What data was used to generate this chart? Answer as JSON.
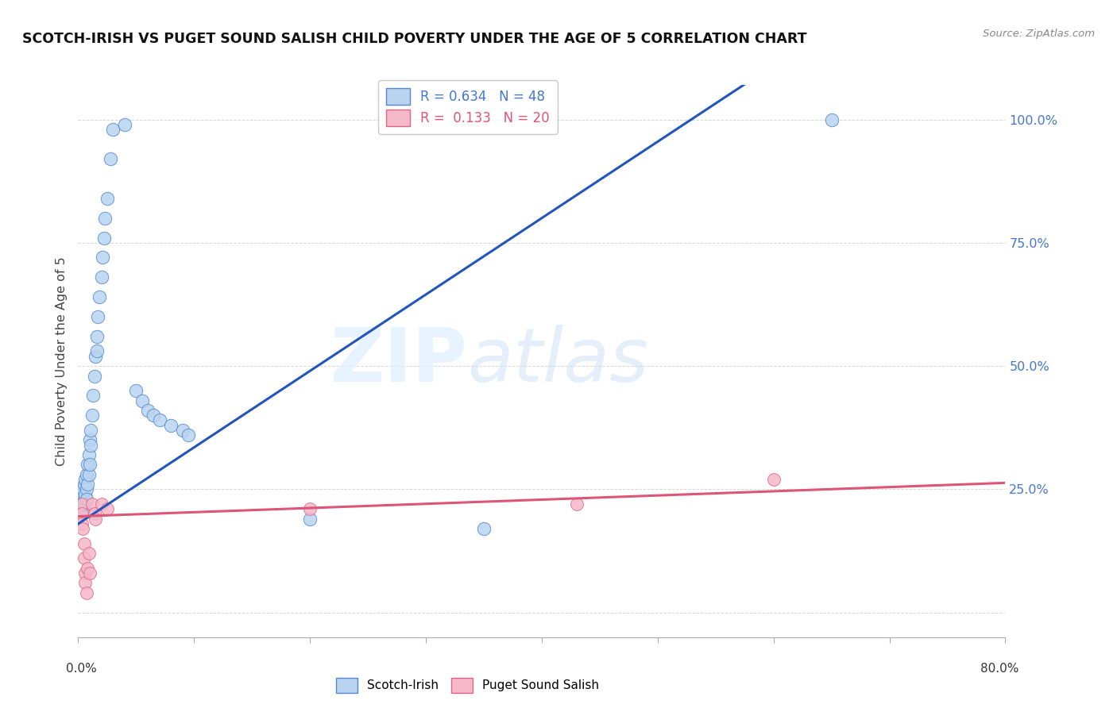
{
  "title": "SCOTCH-IRISH VS PUGET SOUND SALISH CHILD POVERTY UNDER THE AGE OF 5 CORRELATION CHART",
  "source": "Source: ZipAtlas.com",
  "ylabel": "Child Poverty Under the Age of 5",
  "xlim": [
    0.0,
    0.8
  ],
  "ylim": [
    -0.05,
    1.07
  ],
  "scotch_irish_color": "#b8d4f0",
  "scotch_irish_edge": "#5588cc",
  "puget_color": "#f5b8c8",
  "puget_edge": "#dd6688",
  "line1_color": "#2255bb",
  "line2_color": "#dd5577",
  "line1_slope": 1.55,
  "line1_intercept": 0.18,
  "line2_slope": 0.085,
  "line2_intercept": 0.195,
  "scotch_irish_points": [
    [
      0.003,
      0.24
    ],
    [
      0.003,
      0.22
    ],
    [
      0.004,
      0.25
    ],
    [
      0.004,
      0.22
    ],
    [
      0.005,
      0.26
    ],
    [
      0.005,
      0.23
    ],
    [
      0.005,
      0.21
    ],
    [
      0.006,
      0.27
    ],
    [
      0.006,
      0.24
    ],
    [
      0.006,
      0.22
    ],
    [
      0.007,
      0.28
    ],
    [
      0.007,
      0.25
    ],
    [
      0.007,
      0.23
    ],
    [
      0.008,
      0.3
    ],
    [
      0.008,
      0.26
    ],
    [
      0.009,
      0.32
    ],
    [
      0.009,
      0.28
    ],
    [
      0.01,
      0.35
    ],
    [
      0.01,
      0.3
    ],
    [
      0.011,
      0.37
    ],
    [
      0.011,
      0.34
    ],
    [
      0.012,
      0.4
    ],
    [
      0.013,
      0.44
    ],
    [
      0.014,
      0.48
    ],
    [
      0.015,
      0.52
    ],
    [
      0.016,
      0.56
    ],
    [
      0.016,
      0.53
    ],
    [
      0.017,
      0.6
    ],
    [
      0.018,
      0.64
    ],
    [
      0.02,
      0.68
    ],
    [
      0.021,
      0.72
    ],
    [
      0.022,
      0.76
    ],
    [
      0.023,
      0.8
    ],
    [
      0.025,
      0.84
    ],
    [
      0.028,
      0.92
    ],
    [
      0.03,
      0.98
    ],
    [
      0.04,
      0.99
    ],
    [
      0.05,
      0.45
    ],
    [
      0.055,
      0.43
    ],
    [
      0.06,
      0.41
    ],
    [
      0.065,
      0.4
    ],
    [
      0.07,
      0.39
    ],
    [
      0.08,
      0.38
    ],
    [
      0.09,
      0.37
    ],
    [
      0.095,
      0.36
    ],
    [
      0.2,
      0.19
    ],
    [
      0.35,
      0.17
    ],
    [
      0.65,
      1.0
    ]
  ],
  "puget_points": [
    [
      0.003,
      0.22
    ],
    [
      0.003,
      0.2
    ],
    [
      0.003,
      0.18
    ],
    [
      0.004,
      0.17
    ],
    [
      0.005,
      0.14
    ],
    [
      0.005,
      0.11
    ],
    [
      0.006,
      0.08
    ],
    [
      0.006,
      0.06
    ],
    [
      0.007,
      0.04
    ],
    [
      0.008,
      0.09
    ],
    [
      0.009,
      0.12
    ],
    [
      0.01,
      0.08
    ],
    [
      0.012,
      0.22
    ],
    [
      0.014,
      0.2
    ],
    [
      0.015,
      0.19
    ],
    [
      0.02,
      0.22
    ],
    [
      0.025,
      0.21
    ],
    [
      0.2,
      0.21
    ],
    [
      0.43,
      0.22
    ],
    [
      0.6,
      0.27
    ]
  ]
}
